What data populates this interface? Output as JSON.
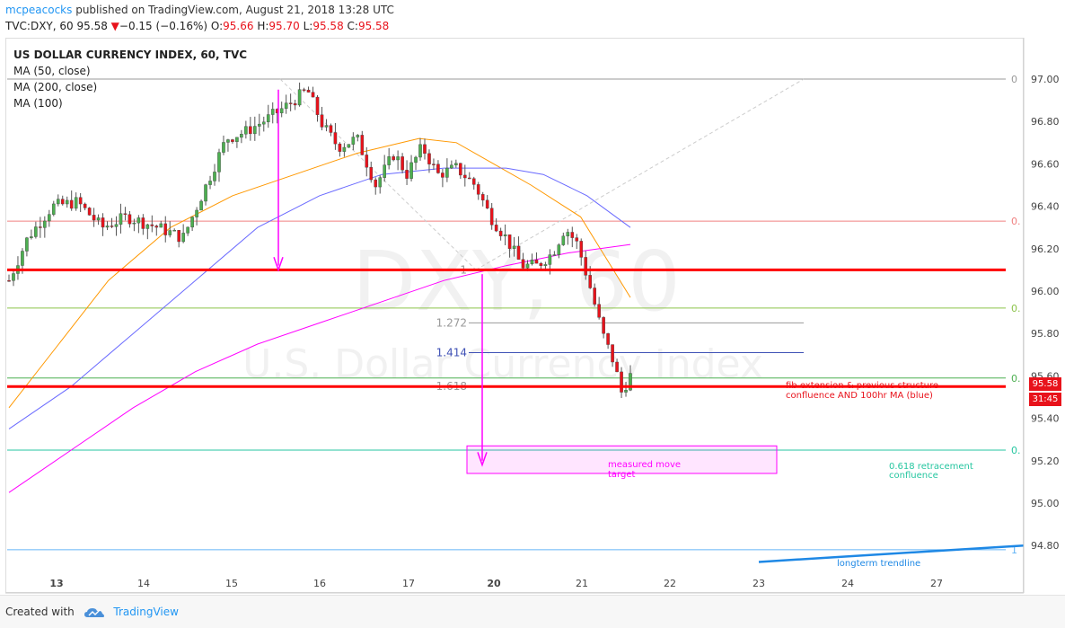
{
  "header": {
    "user": "mcpeacocks",
    "published": " published on TradingView.com, August 21, 2018 13:28 UTC",
    "symbol": "TVC:DXY, 60",
    "last": "95.58",
    "change_arrow": "▼",
    "change": "−0.15 (−0.16%)",
    "o_label": "O:",
    "o_value": "95.66",
    "h_label": "H:",
    "h_value": "95.70",
    "l_label": "L:",
    "l_value": "95.58",
    "c_label": "C:",
    "c_value": "95.58"
  },
  "legend": {
    "title": "US DOLLAR CURRENCY INDEX, 60, TVC",
    "ma1": "MA (50, close)",
    "ma2": "MA (200, close)",
    "ma3": "MA (100)"
  },
  "watermark": {
    "main": "DXY, 60",
    "sub": "U.S. Dollar Currency Index"
  },
  "price_box": {
    "last": "95.58",
    "countdown": "31:45",
    "color": "#e8121b"
  },
  "footer": {
    "created": "Created with",
    "brand": "TradingView"
  },
  "colors": {
    "up": "#4caf50",
    "down": "#e8121b",
    "ma50": "#ff9800",
    "ma200": "#ff00ff",
    "ma100": "#6a6aff",
    "support": "#ff0000",
    "arrow": "#ff00ff",
    "fib_cyan": "#26c6a0"
  },
  "chart_data": {
    "type": "candlestick",
    "title": "US DOLLAR CURRENCY INDEX, 60, TVC",
    "y_range": [
      94.7,
      97.1
    ],
    "y_ticks": [
      97.0,
      96.8,
      96.6,
      96.4,
      96.2,
      96.0,
      95.8,
      95.6,
      95.4,
      95.2,
      95.0,
      94.8
    ],
    "y_tick_labels": [
      "97.00",
      "96.80",
      "96.60",
      "96.40",
      "96.20",
      "96.00",
      "95.80",
      "95.60",
      "95.40",
      "95.20",
      "95.00",
      "94.80"
    ],
    "x_ticks": [
      "13",
      "14",
      "15",
      "16",
      "17",
      "20",
      "21",
      "22",
      "23",
      "24",
      "27"
    ],
    "x_tick_bold": [
      "13",
      "20"
    ],
    "candle_waypoints": [
      {
        "t": 0.0,
        "p": 96.05
      },
      {
        "t": 0.03,
        "p": 96.25
      },
      {
        "t": 0.07,
        "p": 96.4
      },
      {
        "t": 0.11,
        "p": 96.42
      },
      {
        "t": 0.15,
        "p": 96.3
      },
      {
        "t": 0.19,
        "p": 96.35
      },
      {
        "t": 0.24,
        "p": 96.3
      },
      {
        "t": 0.28,
        "p": 96.25
      },
      {
        "t": 0.31,
        "p": 96.45
      },
      {
        "t": 0.35,
        "p": 96.72
      },
      {
        "t": 0.38,
        "p": 96.75
      },
      {
        "t": 0.42,
        "p": 96.82
      },
      {
        "t": 0.45,
        "p": 96.88
      },
      {
        "t": 0.48,
        "p": 96.95
      },
      {
        "t": 0.505,
        "p": 96.78
      },
      {
        "t": 0.53,
        "p": 96.68
      },
      {
        "t": 0.56,
        "p": 96.72
      },
      {
        "t": 0.59,
        "p": 96.5
      },
      {
        "t": 0.62,
        "p": 96.65
      },
      {
        "t": 0.64,
        "p": 96.55
      },
      {
        "t": 0.665,
        "p": 96.68
      },
      {
        "t": 0.69,
        "p": 96.55
      },
      {
        "t": 0.72,
        "p": 96.58
      },
      {
        "t": 0.75,
        "p": 96.5
      },
      {
        "t": 0.775,
        "p": 96.35
      },
      {
        "t": 0.8,
        "p": 96.25
      },
      {
        "t": 0.825,
        "p": 96.12
      },
      {
        "t": 0.85,
        "p": 96.12
      },
      {
        "t": 0.875,
        "p": 96.18
      },
      {
        "t": 0.895,
        "p": 96.3
      },
      {
        "t": 0.915,
        "p": 96.22
      },
      {
        "t": 0.935,
        "p": 96.02
      },
      {
        "t": 0.955,
        "p": 95.8
      },
      {
        "t": 0.975,
        "p": 95.65
      },
      {
        "t": 0.985,
        "p": 95.52
      },
      {
        "t": 1.0,
        "p": 95.6
      }
    ],
    "moving_averages": [
      {
        "name": "MA (50, close)",
        "color": "#ff9800",
        "points": [
          [
            0,
            95.45
          ],
          [
            0.08,
            95.75
          ],
          [
            0.16,
            96.05
          ],
          [
            0.26,
            96.3
          ],
          [
            0.36,
            96.45
          ],
          [
            0.46,
            96.55
          ],
          [
            0.56,
            96.65
          ],
          [
            0.66,
            96.72
          ],
          [
            0.72,
            96.7
          ],
          [
            0.78,
            96.6
          ],
          [
            0.84,
            96.5
          ],
          [
            0.92,
            96.35
          ],
          [
            1.0,
            95.97
          ]
        ]
      },
      {
        "name": "MA (100)",
        "color": "#6a6aff",
        "points": [
          [
            0,
            95.35
          ],
          [
            0.1,
            95.55
          ],
          [
            0.2,
            95.8
          ],
          [
            0.3,
            96.05
          ],
          [
            0.4,
            96.3
          ],
          [
            0.5,
            96.45
          ],
          [
            0.6,
            96.55
          ],
          [
            0.7,
            96.58
          ],
          [
            0.8,
            96.58
          ],
          [
            0.86,
            96.55
          ],
          [
            0.93,
            96.45
          ],
          [
            1.0,
            96.3
          ]
        ]
      },
      {
        "name": "MA (200, close)",
        "color": "#ff00ff",
        "points": [
          [
            0,
            95.05
          ],
          [
            0.1,
            95.25
          ],
          [
            0.2,
            95.45
          ],
          [
            0.3,
            95.62
          ],
          [
            0.4,
            95.75
          ],
          [
            0.5,
            95.85
          ],
          [
            0.6,
            95.95
          ],
          [
            0.7,
            96.05
          ],
          [
            0.8,
            96.12
          ],
          [
            0.9,
            96.18
          ],
          [
            1.0,
            96.22
          ]
        ]
      }
    ],
    "fib_levels": [
      {
        "ratio": "0",
        "price": 97.0,
        "color": "#999999"
      },
      {
        "ratio": "0.",
        "price": 96.33,
        "color": "#f08080"
      },
      {
        "ratio": "0.",
        "price": 95.92,
        "color": "#8bc34a"
      },
      {
        "ratio": "0.",
        "price": 95.59,
        "color": "#4caf50"
      },
      {
        "ratio": "0.",
        "price": 95.25,
        "color": "#26c6a0"
      },
      {
        "ratio": "1",
        "price": 94.78,
        "color": "#64b5f6"
      }
    ],
    "fib_extension": [
      {
        "label": "1",
        "price": 96.1,
        "color": "#999999"
      },
      {
        "label": "1.272",
        "price": 95.85,
        "color": "#999999"
      },
      {
        "label": "1.414",
        "price": 95.71,
        "color": "#3f51b5"
      },
      {
        "label": "1.618",
        "price": 95.55,
        "color": "#999999"
      }
    ],
    "support_lines": [
      {
        "price": 96.1,
        "color": "#ff0000"
      },
      {
        "price": 95.55,
        "color": "#ff0000"
      }
    ],
    "annotations": [
      {
        "text": "fib extension & previous structure",
        "color": "#e8121b"
      },
      {
        "text": "confluence AND 100hr MA (blue)",
        "color": "#e8121b"
      },
      {
        "text": "measured move",
        "color": "#ff00ff"
      },
      {
        "text": "target",
        "color": "#ff00ff"
      },
      {
        "text": "0.618 retracement",
        "color": "#26c6a0"
      },
      {
        "text": "confluence",
        "color": "#26c6a0"
      },
      {
        "text": "longterm trendline",
        "color": "#1e88e5"
      }
    ],
    "longterm_trendline": {
      "from": 94.71,
      "to": 94.8,
      "color": "#1e88e5"
    },
    "last_price": 95.58
  }
}
